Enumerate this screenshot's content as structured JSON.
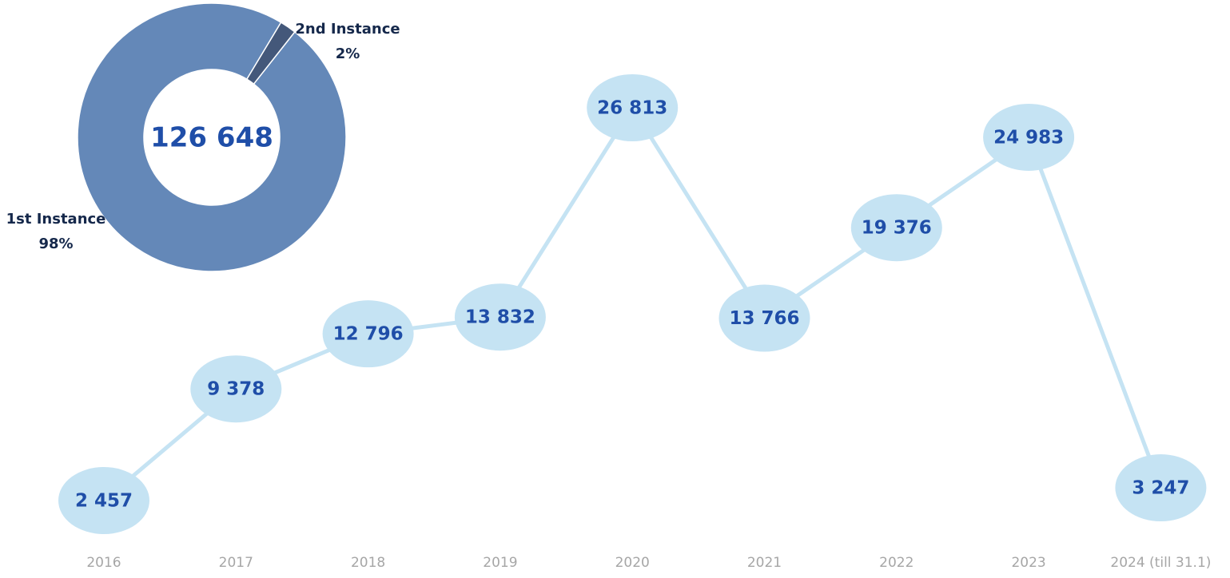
{
  "chart_data": [
    {
      "type": "line",
      "categories": [
        "2016",
        "2017",
        "2018",
        "2019",
        "2020",
        "2021",
        "2022",
        "2023",
        "2024 (till 31.1)"
      ],
      "values": [
        2457,
        9378,
        12796,
        13832,
        26813,
        13766,
        19376,
        24983,
        3247
      ],
      "value_labels": [
        "2 457",
        "9 378",
        "12 796",
        "13 832",
        "26 813",
        "13 766",
        "19 376",
        "24 983",
        "3 247"
      ],
      "color": "#c5e3f3"
    },
    {
      "type": "pie",
      "categories": [
        "1st Instance",
        "2nd Instance"
      ],
      "values": [
        98,
        2
      ],
      "value_labels": [
        "98%",
        "2%"
      ],
      "colors": [
        "#6488b8",
        "#44587a"
      ],
      "center_text": "126 648"
    }
  ]
}
